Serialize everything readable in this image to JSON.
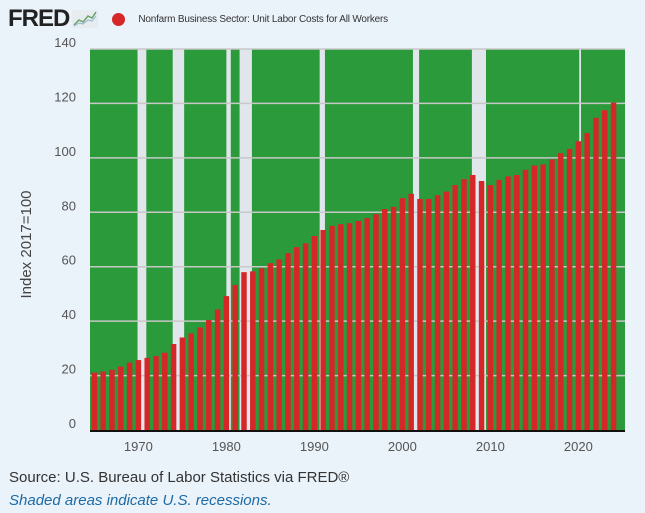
{
  "header": {
    "logo": "FRED",
    "logo_icon": "line-chart-icon",
    "legend_label": "Nonfarm Business Sector: Unit Labor Costs for All Workers",
    "legend_color": "#d62728"
  },
  "footer": {
    "source": "Source: U.S. Bureau of Labor Statistics via FRED®",
    "note": "Shaded areas indicate U.S. recessions."
  },
  "colors": {
    "plot_background": "#2a9a3a",
    "bar": "#d62728",
    "recession": "#e1e6ec",
    "grid": "#c8c8c8",
    "axis": "#111111"
  },
  "chart_data": {
    "type": "bar",
    "title": "Nonfarm Business Sector: Unit Labor Costs for All Workers",
    "xlabel": "",
    "ylabel": "Index 2017=100",
    "ylim": [
      0,
      140
    ],
    "xlim": [
      1964.5,
      2025.3
    ],
    "yticks": [
      0,
      20,
      40,
      60,
      80,
      100,
      120,
      140
    ],
    "xticks": [
      1970,
      1980,
      1990,
      2000,
      2010,
      2020
    ],
    "grid": true,
    "legend": "top-left",
    "x": [
      1965,
      1966,
      1967,
      1968,
      1969,
      1970,
      1971,
      1972,
      1973,
      1974,
      1975,
      1976,
      1977,
      1978,
      1979,
      1980,
      1981,
      1982,
      1983,
      1984,
      1985,
      1986,
      1987,
      1988,
      1989,
      1990,
      1991,
      1992,
      1993,
      1994,
      1995,
      1996,
      1997,
      1998,
      1999,
      2000,
      2001,
      2002,
      2003,
      2004,
      2005,
      2006,
      2007,
      2008,
      2009,
      2010,
      2011,
      2012,
      2013,
      2014,
      2015,
      2016,
      2017,
      2018,
      2019,
      2020,
      2021,
      2022,
      2023,
      2024
    ],
    "series": [
      {
        "name": "Nonfarm Business Sector: Unit Labor Costs for All Workers",
        "values": [
          21.1,
          21.5,
          22.1,
          23.3,
          24.8,
          25.7,
          26.5,
          27.2,
          28.4,
          31.6,
          34.0,
          35.5,
          37.7,
          40.4,
          44.3,
          49.2,
          53.3,
          58.0,
          58.3,
          59.4,
          61.3,
          62.7,
          65.0,
          67.2,
          68.6,
          71.3,
          73.5,
          75.0,
          75.6,
          76.0,
          76.8,
          77.9,
          79.3,
          81.2,
          82.0,
          85.2,
          86.8,
          84.9,
          84.9,
          86.3,
          87.6,
          90.0,
          92.2,
          93.7,
          91.5,
          90.0,
          91.9,
          93.2,
          93.7,
          95.6,
          97.2,
          97.6,
          99.4,
          101.7,
          103.3,
          106.1,
          109.1,
          114.7,
          117.5,
          120.3
        ]
      }
    ],
    "recessions": [
      [
        1969.9,
        1970.9
      ],
      [
        1973.9,
        1975.2
      ],
      [
        1980.0,
        1980.5
      ],
      [
        1981.5,
        1982.9
      ],
      [
        1990.6,
        1991.2
      ],
      [
        2001.2,
        2001.9
      ],
      [
        2007.9,
        2009.5
      ],
      [
        2020.1,
        2020.3
      ]
    ]
  }
}
